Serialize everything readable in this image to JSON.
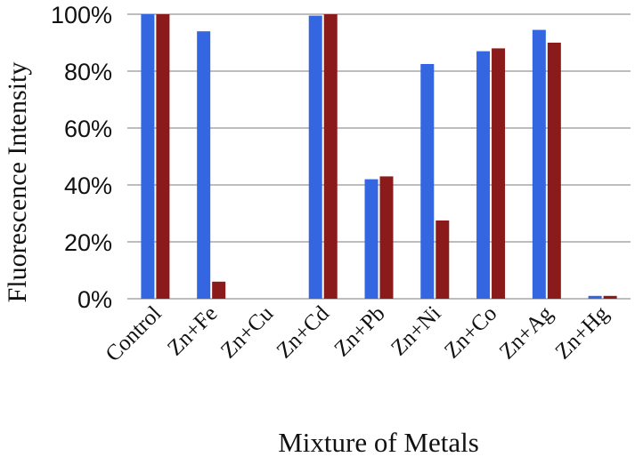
{
  "chart_data": {
    "type": "bar",
    "title": "",
    "xlabel": "Mixture of Metals",
    "ylabel": "Fluorescence Intensity",
    "categories": [
      "Control",
      "Zn+Fe",
      "Zn+Cu",
      "Zn+Cd",
      "Zn+Pb",
      "Zn+Ni",
      "Zn+Co",
      "Zn+Ag",
      "Zn+Hg"
    ],
    "series": [
      {
        "values": [
          100,
          94,
          0,
          99.5,
          42,
          82.5,
          87,
          94.5,
          1
        ],
        "color": "#3366e0"
      },
      {
        "values": [
          100,
          6,
          0,
          100,
          43,
          27.5,
          88,
          90,
          1
        ],
        "color": "#8b1a1a"
      }
    ],
    "ylim": [
      0,
      100
    ],
    "yticks": [
      "0%",
      "20%",
      "40%",
      "60%",
      "80%",
      "100%"
    ],
    "grid": true,
    "legend": "none"
  }
}
